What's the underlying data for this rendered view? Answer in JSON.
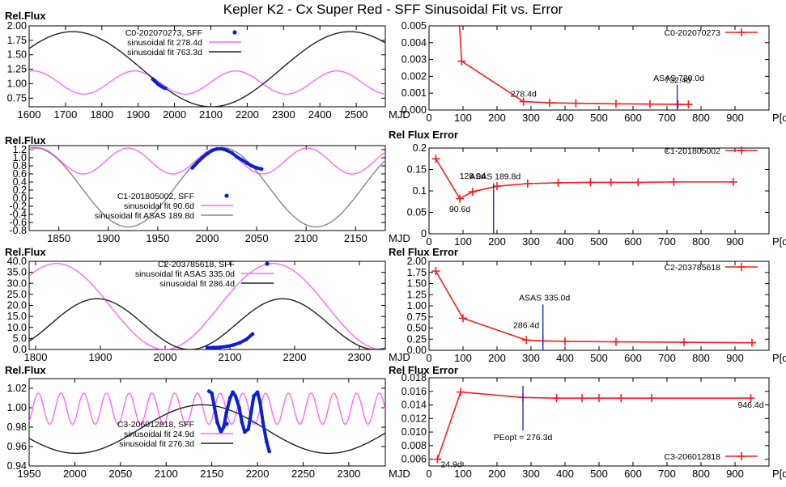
{
  "title": "Kepler K2 - Cx Super Red - SFF Sinusoidal Fit vs. Error",
  "colors": {
    "data": "#0a1fd6",
    "sin_short": "#ff66ff",
    "sin_long_dark": "#222222",
    "sin_long_gray": "#888888",
    "error": "#ff1a1a",
    "asas": "#1f2fd0"
  },
  "chart_data": [
    {
      "id": "lc0",
      "type": "line",
      "ylabel": "Rel.Flux",
      "xlabel": "MJD",
      "xlim": [
        1600,
        2580
      ],
      "ylim": [
        0.6,
        2.0
      ],
      "xticks": [
        1600,
        1700,
        1800,
        1900,
        2000,
        2100,
        2200,
        2300,
        2400,
        2500
      ],
      "yticks": [
        0.75,
        1.0,
        1.25,
        1.5,
        1.75,
        2.0
      ],
      "ytick_labels": [
        "0.75",
        "1.00",
        "1.25",
        "1.50",
        "1.75",
        "2.00"
      ],
      "legend": [
        "C0-202070273, SFF",
        "sinusoidal fit 278.4d",
        "sinusoidal fit 763.3d"
      ],
      "data_points": {
        "x": [
          1940,
          1945,
          1950,
          1955,
          1960,
          1965,
          1970,
          1975
        ],
        "y": [
          1.08,
          1.05,
          1.02,
          0.99,
          0.97,
          0.95,
          0.93,
          0.92
        ]
      },
      "fits": [
        {
          "name": "sinusoidal fit 278.4d",
          "period": 278.4,
          "amp": 0.2,
          "mean": 1.02,
          "t0": 1890,
          "style": "short"
        },
        {
          "name": "sinusoidal fit 763.3d",
          "period": 763.3,
          "amp": 0.65,
          "mean": 1.25,
          "t0": 1720,
          "style": "long_dark"
        }
      ]
    },
    {
      "id": "err0",
      "type": "line",
      "ylabel": "",
      "xlabel": "P[d]",
      "xlim": [
        0,
        1000
      ],
      "ylim": [
        0,
        0.005
      ],
      "xticks": [
        0,
        100,
        200,
        300,
        400,
        500,
        600,
        700,
        800,
        900
      ],
      "yticks": [
        0,
        0.001,
        0.002,
        0.003,
        0.004,
        0.005
      ],
      "ytick_labels": [
        "0.000",
        "0.001",
        "0.002",
        "0.003",
        "0.004",
        "0.005"
      ],
      "legend": [
        "C0-202070273"
      ],
      "x": [
        88,
        96,
        278,
        355,
        432,
        550,
        650,
        732,
        763
      ],
      "y": [
        0.0055,
        0.0029,
        0.0005,
        0.00043,
        0.0004,
        0.00037,
        0.00035,
        0.00034,
        0.00033
      ],
      "asas": {
        "x": 730,
        "ytop": 0.0015,
        "label": "ASAS 730.0d"
      },
      "annotations": [
        {
          "text": "278.4d",
          "x": 278,
          "y": 0.0008
        },
        {
          "text": "732.4d",
          "x": 732,
          "y": 0.0016
        }
      ]
    },
    {
      "id": "lc1",
      "type": "line",
      "ylabel": "Rel.Flux",
      "xlabel": "MJD",
      "xlim": [
        1820,
        2180
      ],
      "ylim": [
        -0.8,
        1.3
      ],
      "xticks": [
        1850,
        1900,
        1950,
        2000,
        2050,
        2100,
        2150
      ],
      "yticks": [
        -0.8,
        -0.6,
        -0.4,
        -0.2,
        0,
        0.2,
        0.4,
        0.6,
        0.8,
        1.0,
        1.2
      ],
      "ytick_labels": [
        "-0.8",
        "-0.6",
        "-0.4",
        "-0.2",
        "0.0",
        "0.2",
        "0.4",
        "0.6",
        "0.8",
        "1.0",
        "1.2"
      ],
      "legend": [
        "C1-201805002, SFF",
        "sinusoidal fit 90.6d",
        "sinusoidal fit ASAS 189.8d"
      ],
      "data_points": {
        "x": [
          1985,
          1990,
          1995,
          2000,
          2005,
          2010,
          2015,
          2020,
          2025,
          2030,
          2035,
          2040,
          2045,
          2050,
          2055
        ],
        "y": [
          0.75,
          0.88,
          1.0,
          1.1,
          1.18,
          1.22,
          1.22,
          1.18,
          1.12,
          1.02,
          0.95,
          0.87,
          0.8,
          0.75,
          0.72
        ]
      },
      "fits": [
        {
          "name": "sinusoidal fit 90.6d",
          "period": 90.6,
          "amp": 0.32,
          "mean": 0.92,
          "t0": 1920,
          "style": "short"
        },
        {
          "name": "sinusoidal fit ASAS 189.8d",
          "period": 189.8,
          "amp": 0.98,
          "mean": 0.27,
          "t0": 2015,
          "style": "long_gray"
        }
      ]
    },
    {
      "id": "err1",
      "type": "line",
      "ylabel": "Rel Flux Error",
      "xlabel": "P[d]",
      "xlim": [
        0,
        1000
      ],
      "ylim": [
        0,
        0.2
      ],
      "xticks": [
        0,
        100,
        200,
        300,
        400,
        500,
        600,
        700,
        800,
        900
      ],
      "yticks": [
        0,
        0.05,
        0.1,
        0.15,
        0.2
      ],
      "ytick_labels": [
        "0",
        "0.05",
        "0.1",
        "0.15",
        "0.2"
      ],
      "legend": [
        "C1-201805002"
      ],
      "x": [
        20,
        90.6,
        128,
        200,
        290,
        380,
        475,
        535,
        615,
        720,
        895
      ],
      "y": [
        0.175,
        0.082,
        0.098,
        0.111,
        0.117,
        0.119,
        0.12,
        0.12,
        0.12,
        0.121,
        0.121
      ],
      "asas": {
        "x": 189.8,
        "ytop": 0.118,
        "label": "ASAS 189.8d"
      },
      "annotations": [
        {
          "text": "128.0d",
          "x": 128,
          "y": 0.128
        },
        {
          "text": "90.6d",
          "x": 90.6,
          "y": 0.062
        }
      ]
    },
    {
      "id": "lc2",
      "type": "line",
      "ylabel": "Rel.Flux",
      "xlabel": "MJD",
      "xlim": [
        1790,
        2340
      ],
      "ylim": [
        0,
        40
      ],
      "xticks": [
        1800,
        1900,
        2000,
        2100,
        2200,
        2300
      ],
      "yticks": [
        0,
        5,
        10,
        15,
        20,
        25,
        30,
        35,
        40
      ],
      "ytick_labels": [
        "0.0",
        "5.0",
        "10.0",
        "15.0",
        "20.0",
        "25.0",
        "30.0",
        "35.0",
        "40.0"
      ],
      "legend": [
        "C2-203785618, SFF",
        "sinusoidal fit ASAS 335.0d",
        "sinusoidal fit 286.4d"
      ],
      "data_points": {
        "x": [
          2065,
          2075,
          2085,
          2095,
          2105,
          2115,
          2125,
          2135
        ],
        "y": [
          0.8,
          0.9,
          1.0,
          1.4,
          2.0,
          3.0,
          4.5,
          7.0
        ]
      },
      "fits": [
        {
          "name": "sinusoidal fit ASAS 335.0d",
          "period": 335.0,
          "amp": 19.5,
          "mean": 19.5,
          "t0": 1832,
          "style": "short"
        },
        {
          "name": "sinusoidal fit 286.4d",
          "period": 286.4,
          "amp": 11.5,
          "mean": 11.5,
          "t0": 1895,
          "style": "long_dark"
        }
      ]
    },
    {
      "id": "err2",
      "type": "line",
      "ylabel": "Rel Flux Error",
      "xlabel": "P[d]",
      "xlim": [
        0,
        1000
      ],
      "ylim": [
        0,
        2.0
      ],
      "xticks": [
        0,
        100,
        200,
        300,
        400,
        500,
        600,
        700,
        800,
        900
      ],
      "yticks": [
        0,
        0.25,
        0.5,
        0.75,
        1.0,
        1.25,
        1.5,
        1.75,
        2.0
      ],
      "ytick_labels": [
        "0.00",
        "0.25",
        "0.50",
        "0.75",
        "1.00",
        "1.25",
        "1.50",
        "1.75",
        "2.00"
      ],
      "legend": [
        "C2-203785618"
      ],
      "x": [
        20,
        100,
        286,
        335,
        400,
        550,
        750,
        950
      ],
      "y": [
        1.78,
        0.72,
        0.23,
        0.21,
        0.2,
        0.19,
        0.18,
        0.17
      ],
      "asas": {
        "x": 335,
        "ytop": 1.03,
        "label": "ASAS 335.0d"
      },
      "annotations": [
        {
          "text": "286.4d",
          "x": 286,
          "y": 0.5
        }
      ]
    },
    {
      "id": "lc3",
      "type": "line",
      "ylabel": "Rel.Flux",
      "xlabel": "MJD",
      "xlim": [
        1950,
        2340
      ],
      "ylim": [
        0.94,
        1.03
      ],
      "xticks": [
        1950,
        2000,
        2050,
        2100,
        2150,
        2200,
        2250,
        2300
      ],
      "yticks": [
        0.94,
        0.96,
        0.98,
        1.0,
        1.02
      ],
      "ytick_labels": [
        "0.94",
        "0.96",
        "0.98",
        "1.00",
        "1.02"
      ],
      "legend": [
        "C3-206012818, SFF",
        "sinusoidal fit 24.9d",
        "sinusoidal fit 276.3d"
      ],
      "data_points": {
        "x": [
          2147,
          2150,
          2153,
          2156,
          2160,
          2163,
          2166,
          2170,
          2173,
          2176,
          2180,
          2183,
          2186,
          2190,
          2193,
          2196,
          2200,
          2203,
          2206,
          2210,
          2213
        ],
        "y": [
          1.017,
          1.015,
          1.0,
          0.985,
          0.975,
          0.98,
          0.995,
          1.01,
          1.016,
          1.012,
          1.0,
          0.985,
          0.975,
          0.978,
          0.995,
          1.012,
          1.016,
          1.005,
          0.985,
          0.965,
          0.955
        ]
      },
      "fits": [
        {
          "name": "sinusoidal fit 24.9d",
          "period": 24.9,
          "amp": 0.016,
          "mean": 0.999,
          "t0": 1960,
          "style": "short"
        },
        {
          "name": "sinusoidal fit 276.3d",
          "period": 276.3,
          "amp": 0.025,
          "mean": 0.978,
          "t0": 2140,
          "style": "long_dark"
        }
      ]
    },
    {
      "id": "err3",
      "type": "line",
      "ylabel": "Rel Flux Error",
      "xlabel": "P[d]",
      "xlim": [
        0,
        1000
      ],
      "ylim": [
        0.005,
        0.018
      ],
      "xticks": [
        0,
        100,
        200,
        300,
        400,
        500,
        600,
        700,
        800,
        900
      ],
      "yticks": [
        0.006,
        0.008,
        0.01,
        0.012,
        0.014,
        0.016,
        0.018
      ],
      "ytick_labels": [
        "0.006",
        "0.008",
        "0.010",
        "0.012",
        "0.014",
        "0.016",
        "0.018"
      ],
      "legend": [
        "C3-206012818"
      ],
      "x": [
        24.9,
        93,
        276.3,
        375,
        450,
        500,
        565,
        655,
        946.4
      ],
      "y": [
        0.006,
        0.0159,
        0.0151,
        0.015,
        0.015,
        0.015,
        0.015,
        0.015,
        0.015
      ],
      "asas": {
        "x": 276.3,
        "ytop": 0.0168,
        "ybottom": 0.0102,
        "label": ""
      },
      "annotations": [
        {
          "text": "PEopt = 276.3d",
          "x": 276.3,
          "y": 0.0088
        },
        {
          "text": "24.9d",
          "x": 24.9,
          "y": 0.006
        },
        {
          "text": "946.4d",
          "x": 946.4,
          "y": 0.0143
        }
      ]
    }
  ]
}
